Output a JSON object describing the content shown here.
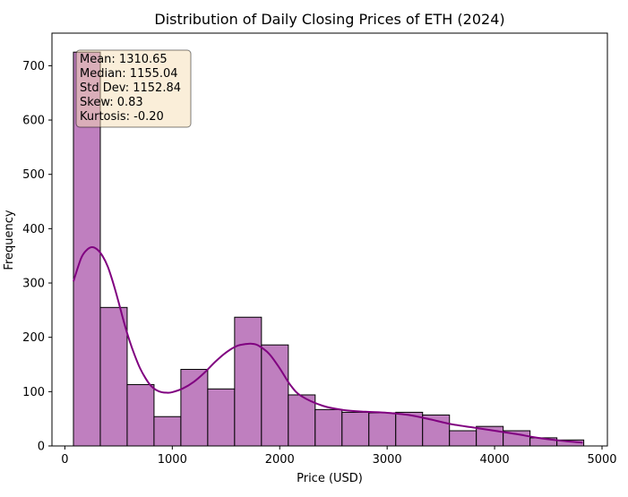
{
  "chart_data": {
    "type": "bar",
    "title": "Distribution of Daily Closing Prices of ETH (2024)",
    "xlabel": "Price (USD)",
    "ylabel": "Frequency",
    "xlim": [
      -120,
      5050
    ],
    "ylim": [
      0,
      760
    ],
    "x_ticks": [
      0,
      1000,
      2000,
      3000,
      4000,
      5000
    ],
    "y_ticks": [
      0,
      100,
      200,
      300,
      400,
      500,
      600,
      700
    ],
    "bar_color": "#bf7fbf",
    "bar_edge_color": "#000000",
    "kde_color": "#800080",
    "bins": [
      {
        "x0": 80,
        "x1": 330,
        "count": 725
      },
      {
        "x0": 330,
        "x1": 580,
        "count": 255
      },
      {
        "x0": 580,
        "x1": 830,
        "count": 113
      },
      {
        "x0": 830,
        "x1": 1080,
        "count": 54
      },
      {
        "x0": 1080,
        "x1": 1330,
        "count": 141
      },
      {
        "x0": 1330,
        "x1": 1580,
        "count": 105
      },
      {
        "x0": 1580,
        "x1": 1830,
        "count": 237
      },
      {
        "x0": 1830,
        "x1": 2080,
        "count": 186
      },
      {
        "x0": 2080,
        "x1": 2330,
        "count": 94
      },
      {
        "x0": 2330,
        "x1": 2580,
        "count": 67
      },
      {
        "x0": 2580,
        "x1": 2830,
        "count": 62
      },
      {
        "x0": 2830,
        "x1": 3080,
        "count": 61
      },
      {
        "x0": 3080,
        "x1": 3330,
        "count": 62
      },
      {
        "x0": 3330,
        "x1": 3580,
        "count": 57
      },
      {
        "x0": 3580,
        "x1": 3830,
        "count": 28
      },
      {
        "x0": 3830,
        "x1": 4080,
        "count": 36
      },
      {
        "x0": 4080,
        "x1": 4330,
        "count": 28
      },
      {
        "x0": 4330,
        "x1": 4580,
        "count": 15
      },
      {
        "x0": 4580,
        "x1": 4830,
        "count": 11
      }
    ],
    "kde": {
      "x": [
        80,
        150,
        200,
        250,
        300,
        350,
        400,
        450,
        500,
        550,
        600,
        650,
        700,
        750,
        800,
        850,
        900,
        950,
        1000,
        1100,
        1200,
        1300,
        1400,
        1500,
        1600,
        1700,
        1750,
        1800,
        1900,
        2000,
        2100,
        2200,
        2400,
        2600,
        2800,
        3000,
        3200,
        3400,
        3600,
        3800,
        4000,
        4200,
        4400,
        4600,
        4820
      ],
      "y": [
        303,
        345,
        360,
        366,
        362,
        350,
        330,
        300,
        265,
        228,
        195,
        167,
        143,
        125,
        111,
        103,
        99,
        98,
        99,
        106,
        118,
        135,
        155,
        172,
        184,
        188,
        188,
        185,
        170,
        143,
        112,
        92,
        74,
        66,
        63,
        61,
        57,
        49,
        40,
        34,
        28,
        22,
        15,
        10,
        6
      ]
    },
    "stats": [
      "Mean: 1310.65",
      "Median: 1155.04",
      "Std Dev: 1152.84",
      "Skew: 0.83",
      "Kurtosis: -0.20"
    ],
    "stats_box_facecolor": "#f5deb3"
  }
}
